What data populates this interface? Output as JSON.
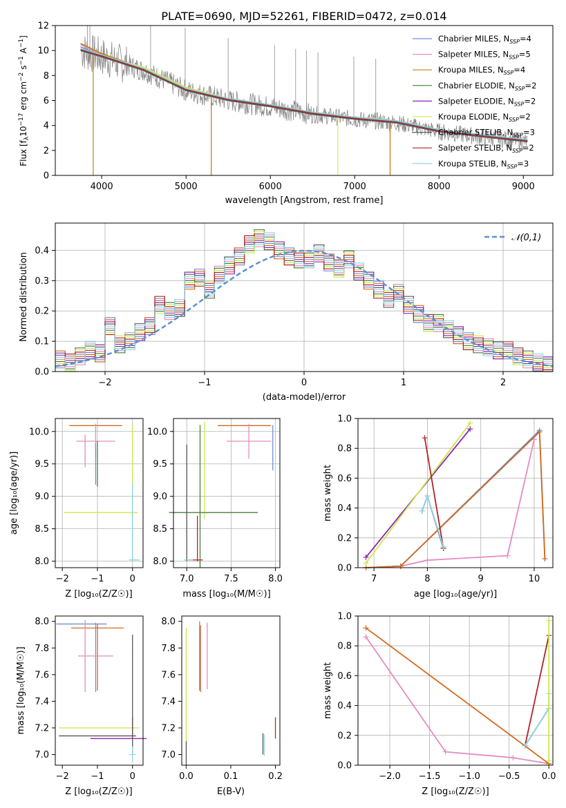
{
  "spectrum": {
    "title": "PLATE=0690, MJD=52261, FIBERID=0472, z=0.014",
    "xlabel": "wavelength [Angstrom, rest frame]",
    "ylabel": "Flux [f_λ 10^-17 erg cm^-2 s^-1 A^-1]",
    "xlim": [
      3450,
      9350
    ],
    "ylim": [
      0,
      12
    ],
    "xticks": [
      "4000",
      "5000",
      "6000",
      "7000",
      "8000",
      "9000"
    ],
    "yticks": [
      "0",
      "2",
      "4",
      "6",
      "8",
      "10",
      "12"
    ],
    "legend": [
      "Chabrier MILES, N_SSP=4",
      "Salpeter MILES, N_SSP=5",
      "Kroupa MILES, N_SSP=4",
      "Chabrier ELODIE, N_SSP=2",
      "Salpeter ELODIE, N_SSP=2",
      "Kroupa ELODIE, N_SSP=2",
      "Chabrier STELIB, N_SSP=3",
      "Salpeter STELIB, N_SSP=2",
      "Kroupa STELIB, N_SSP=3"
    ]
  },
  "colors": {
    "models": [
      "#6f8fd6",
      "#e58bbf",
      "#b8860b",
      "#4a7c3a",
      "#8e24aa",
      "#d7ec5e",
      "#5a5a5a",
      "#b22222",
      "#7fd0e0"
    ],
    "data": "#888888",
    "gauss": "#5b8fd6",
    "hist": [
      "#6f8fd6",
      "#e58bbf",
      "#d2691e",
      "#4a7c3a",
      "#8e24aa",
      "#c7ea4a",
      "#5a5a5a",
      "#b22222",
      "#8fd6e6"
    ],
    "w_chab_miles": "#6f8fd6",
    "w_salp_miles": "#e58bbf",
    "w_kroupa": "#d2691e",
    "w_salp_elodie": "#8e24aa",
    "w_kroupa_elodie": "#c7ea4a",
    "w_chab_stelib": "#555555",
    "w_salp_stelib": "#b22222",
    "w_kroupa_stelib": "#8fd6e6"
  },
  "residuals": {
    "xlabel": "(data-model)/error",
    "ylabel": "Normed distribution",
    "legend": "𝒩(0,1)",
    "xlim": [
      -2.5,
      2.5
    ],
    "ylim": [
      0,
      0.49
    ],
    "xticks": [
      "−2",
      "−1",
      "0",
      "1",
      "2"
    ],
    "yticks": [
      "0.0",
      "0.1",
      "0.2",
      "0.3",
      "0.4"
    ]
  },
  "panels": {
    "age_z": {
      "xlabel": "Z [log₁₀(Z/Z☉)]",
      "ylabel": "age  [log₁₀(age/yr)]",
      "xticks": [
        "−2",
        "−1",
        "0"
      ],
      "yticks": [
        "8.0",
        "8.5",
        "9.0",
        "9.5",
        "10.0"
      ]
    },
    "age_mass": {
      "xlabel": "mass [log₁₀(M/M☉)]",
      "xticks": [
        "7.0",
        "7.5",
        "8.0"
      ],
      "yticks": [
        "8.0",
        "8.5",
        "9.0",
        "9.5",
        "10.0"
      ]
    },
    "w_age": {
      "xlabel": "age  [log₁₀(age/yr)]",
      "ylabel": "mass weight",
      "xticks": [
        "7",
        "8",
        "9",
        "10"
      ],
      "yticks": [
        "0.0",
        "0.2",
        "0.4",
        "0.6",
        "0.8",
        "1.0"
      ]
    },
    "mass_z": {
      "xlabel": "Z [log₁₀(Z/Z☉)]",
      "ylabel": "mass [log₁₀(M/M☉)]",
      "xticks": [
        "−2",
        "−1",
        "0"
      ],
      "yticks": [
        "7.0",
        "7.2",
        "7.4",
        "7.6",
        "7.8",
        "8.0"
      ]
    },
    "mass_ebv": {
      "xlabel": "E(B-V)",
      "xticks": [
        "0.0",
        "0.1",
        "0.2"
      ],
      "yticks": [
        "7.0",
        "7.2",
        "7.4",
        "7.6",
        "7.8",
        "8.0"
      ]
    },
    "w_z": {
      "xlabel": "Z [log₁₀(Z/Z☉)]",
      "ylabel": "mass weight",
      "xticks": [
        "−2.0",
        "−1.5",
        "−1.0",
        "−0.5",
        "0.0"
      ],
      "yticks": [
        "0.0",
        "0.2",
        "0.4",
        "0.6",
        "0.8",
        "1.0"
      ]
    }
  },
  "chart_data": [
    {
      "type": "line",
      "title": "PLATE=0690, MJD=52261, FIBERID=0472, z=0.014",
      "xlabel": "wavelength [Angstrom, rest frame]",
      "x": [
        3750,
        4000,
        4500,
        5000,
        5500,
        6000,
        6500,
        7000,
        7500,
        8000,
        8500,
        9050
      ],
      "series": [
        {
          "name": "Chabrier MILES, N_SSP=4",
          "values": [
            10.3,
            9.6,
            8.4,
            6.8,
            6.0,
            5.5,
            4.9,
            4.5,
            4.2,
            3.5,
            3.1,
            null
          ]
        },
        {
          "name": "Salpeter MILES, N_SSP=5",
          "values": [
            10.4,
            9.6,
            8.4,
            6.8,
            6.0,
            5.5,
            4.9,
            4.5,
            4.2,
            3.5,
            3.1,
            null
          ]
        },
        {
          "name": "Kroupa MILES, N_SSP=4",
          "values": [
            10.4,
            9.6,
            8.4,
            6.8,
            6.0,
            5.5,
            4.9,
            4.5,
            4.2,
            3.5,
            3.1,
            null
          ]
        },
        {
          "name": "Chabrier ELODIE, N_SSP=2",
          "values": [
            10.0,
            9.5,
            8.4,
            6.8,
            6.0,
            5.5,
            4.9,
            4.5,
            null,
            null,
            null,
            null
          ]
        },
        {
          "name": "Salpeter ELODIE, N_SSP=2",
          "values": [
            10.0,
            9.5,
            8.4,
            6.8,
            6.0,
            5.5,
            4.9,
            4.5,
            null,
            null,
            null,
            null
          ]
        },
        {
          "name": "Kroupa ELODIE, N_SSP=2",
          "values": [
            9.9,
            9.4,
            8.5,
            6.9,
            6.0,
            5.5,
            4.9,
            4.5,
            null,
            null,
            null,
            null
          ]
        },
        {
          "name": "Chabrier STELIB, N_SSP=3",
          "values": [
            10.0,
            9.5,
            8.4,
            6.8,
            6.0,
            5.5,
            4.9,
            4.5,
            4.2,
            3.5,
            3.1,
            2.7
          ]
        },
        {
          "name": "Salpeter STELIB, N_SSP=2",
          "values": [
            10.0,
            9.5,
            8.4,
            6.8,
            6.0,
            5.5,
            4.9,
            4.5,
            4.2,
            3.5,
            3.1,
            2.7
          ]
        },
        {
          "name": "Kroupa STELIB, N_SSP=3",
          "values": [
            10.0,
            9.5,
            8.4,
            6.8,
            6.0,
            5.5,
            4.9,
            4.5,
            4.2,
            3.5,
            3.1,
            2.7
          ]
        }
      ],
      "ylim": [
        0,
        12
      ],
      "grid": false,
      "legend": "top-right"
    },
    {
      "type": "bar",
      "xlabel": "(data-model)/error",
      "ylabel": "Normed distribution",
      "bin_width": 0.1,
      "x_range": [
        -2.5,
        2.5
      ],
      "values": [
        0.04,
        0.03,
        0.05,
        0.07,
        0.06,
        0.15,
        0.09,
        0.1,
        0.13,
        0.15,
        0.22,
        0.2,
        0.21,
        0.3,
        0.31,
        0.27,
        0.32,
        0.35,
        0.38,
        0.42,
        0.44,
        0.43,
        0.4,
        0.38,
        0.37,
        0.37,
        0.39,
        0.36,
        0.34,
        0.37,
        0.33,
        0.3,
        0.27,
        0.24,
        0.26,
        0.22,
        0.19,
        0.16,
        0.16,
        0.14,
        0.12,
        0.1,
        0.09,
        0.08,
        0.07,
        0.07,
        0.05,
        0.04,
        0.03,
        0.02
      ],
      "gaussian": "𝒩(0,1)",
      "ylim": [
        0,
        0.49
      ],
      "grid": true,
      "legend": "top-right"
    },
    {
      "type": "scatter",
      "xlabel": "age  [log₁₀(age/yr)]",
      "ylabel": "mass weight",
      "series": [
        {
          "name": "Chabrier MILES, N_SSP=4",
          "x": [
            6.85,
            7.5,
            10.1,
            10.2
          ],
          "y": [
            0.0,
            0.01,
            0.92,
            0.06
          ]
        },
        {
          "name": "Salpeter MILES, N_SSP=5",
          "x": [
            6.85,
            7.5,
            8.0,
            9.5,
            10.0
          ],
          "y": [
            0.0,
            0.01,
            0.05,
            0.08,
            0.86
          ]
        },
        {
          "name": "Kroupa MILES, N_SSP=4",
          "x": [
            6.85,
            7.5,
            10.1,
            10.2
          ],
          "y": [
            0.0,
            0.01,
            0.91,
            0.06
          ]
        },
        {
          "name": "Salpeter ELODIE, N_SSP=2",
          "x": [
            6.85,
            8.8
          ],
          "y": [
            0.07,
            0.93
          ]
        },
        {
          "name": "Kroupa ELODIE, N_SSP=2",
          "x": [
            6.85,
            8.8
          ],
          "y": [
            0.03,
            0.97
          ]
        },
        {
          "name": "Chabrier STELIB, N_SSP=3",
          "x": [
            7.9,
            8.0,
            8.3
          ],
          "y": [
            0.38,
            0.48,
            0.13
          ]
        },
        {
          "name": "Salpeter STELIB, N_SSP=2",
          "x": [
            7.95,
            8.3
          ],
          "y": [
            0.87,
            0.13
          ]
        },
        {
          "name": "Kroupa STELIB, N_SSP=3",
          "x": [
            7.9,
            8.0,
            8.3
          ],
          "y": [
            0.38,
            0.48,
            0.14
          ]
        }
      ],
      "ylim": [
        0,
        1.0
      ],
      "grid": true
    },
    {
      "type": "scatter",
      "xlabel": "Z [log₁₀(Z/Z☉)]",
      "ylabel": "mass weight",
      "series": [
        {
          "name": "Salpeter MILES, N_SSP=5",
          "x": [
            -2.3,
            -1.3,
            -0.45,
            0.0
          ],
          "y": [
            0.86,
            0.09,
            0.05,
            0.01
          ]
        },
        {
          "name": "Kroupa MILES, N_SSP=4",
          "x": [
            -2.3,
            0.0
          ],
          "y": [
            0.92,
            0.01
          ]
        },
        {
          "name": "Chabrier STELIB, N_SSP=3",
          "x": [
            -0.3,
            0.0
          ],
          "y": [
            0.13,
            0.38
          ]
        },
        {
          "name": "Salpeter STELIB, N_SSP=2",
          "x": [
            -0.3,
            0.0
          ],
          "y": [
            0.13,
            0.87
          ]
        },
        {
          "name": "Kroupa STELIB, N_SSP=3",
          "x": [
            -0.3,
            0.0,
            0.0
          ],
          "y": [
            0.13,
            0.38,
            0.48
          ]
        },
        {
          "name": "Kroupa ELODIE, N_SSP=2",
          "x": [
            0.0,
            0.0
          ],
          "y": [
            0.03,
            0.97
          ]
        }
      ],
      "ylim": [
        0,
        1.0
      ],
      "grid": true
    }
  ]
}
